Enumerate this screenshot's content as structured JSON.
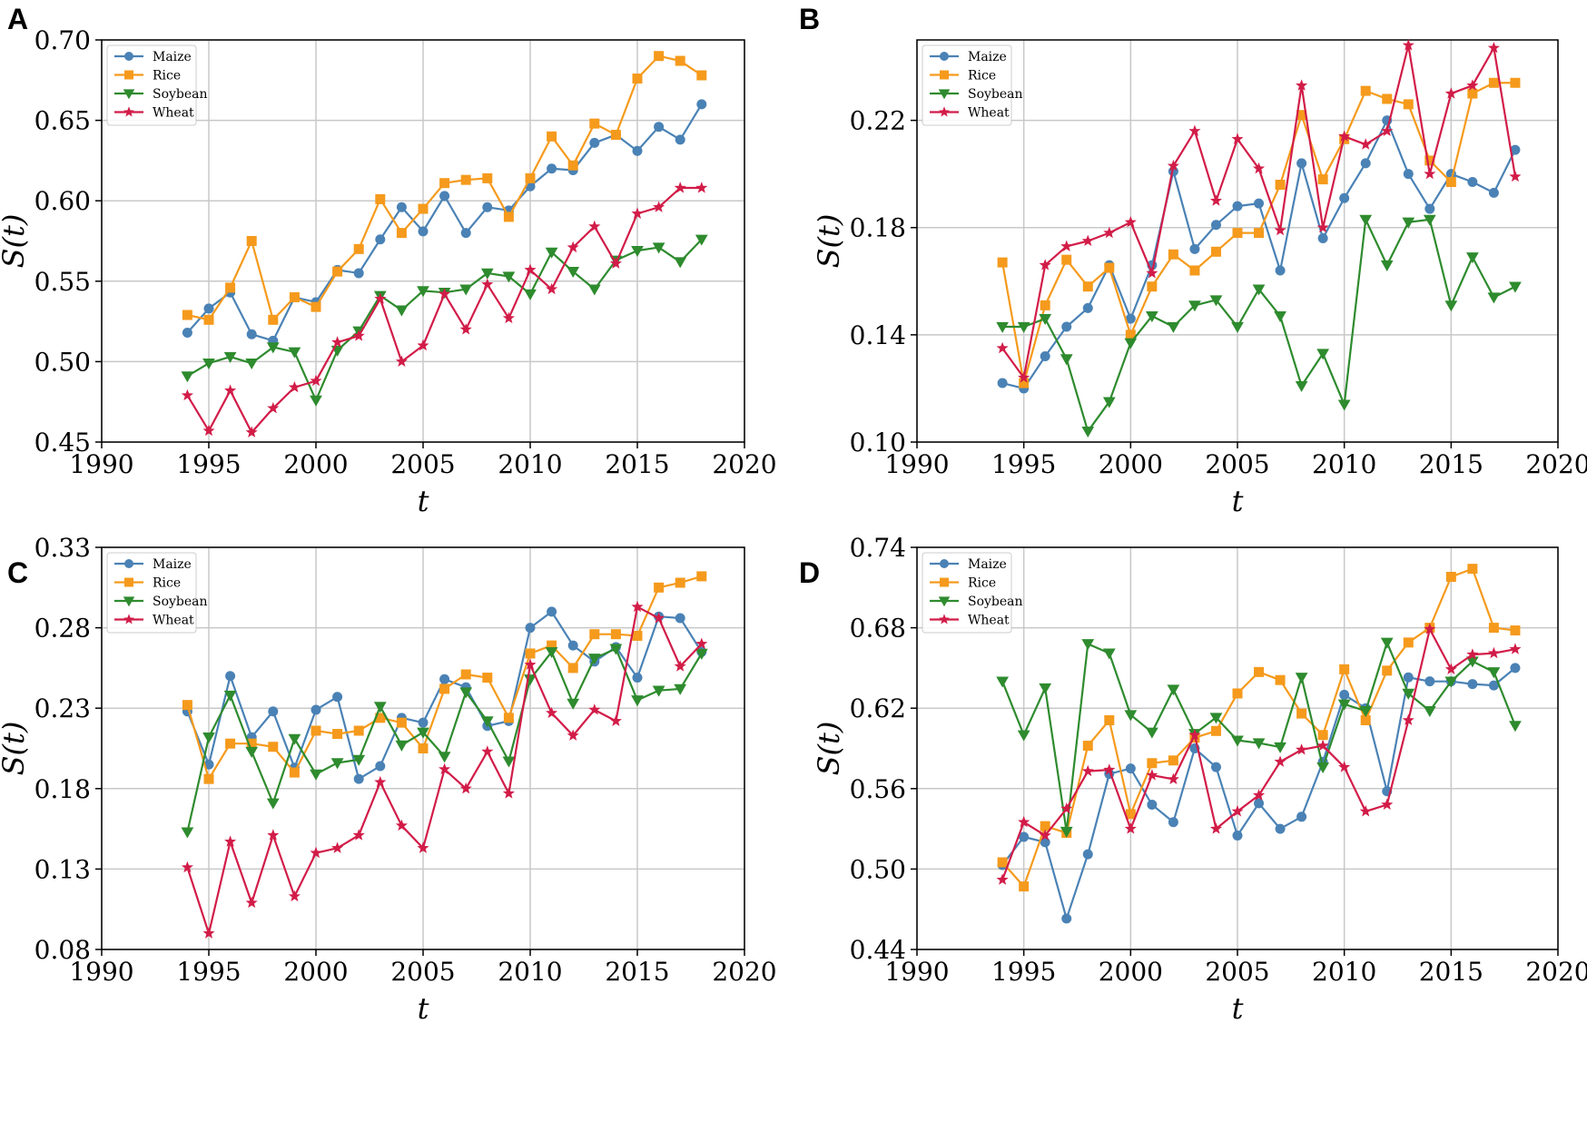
{
  "figure": {
    "ylabel": "S(t)",
    "xlabel": "t"
  },
  "colors": {
    "Maize": "#4a82b5",
    "Rice": "#f59a1c",
    "Soybean": "#2e8b2e",
    "Wheat": "#d21c48"
  },
  "markers": {
    "Maize": "circle",
    "Rice": "square",
    "Soybean": "triangle-down",
    "Wheat": "star"
  },
  "chart_data": [
    {
      "type": "line",
      "label": "A",
      "xlabel": "t",
      "ylabel": "S(t)",
      "xlim": [
        1990,
        2020
      ],
      "ylim": [
        0.45,
        0.7
      ],
      "xticks": [
        1990,
        1995,
        2000,
        2005,
        2010,
        2015,
        2020
      ],
      "yticks": [
        0.45,
        0.5,
        0.55,
        0.6,
        0.65,
        0.7
      ],
      "ytick_labels": [
        "0.45",
        "0.50",
        "0.55",
        "0.60",
        "0.65",
        "0.70"
      ],
      "xtick_labels": [
        "1990",
        "1995",
        "2000",
        "2005",
        "2010",
        "2015",
        "2020"
      ],
      "legend": [
        "Maize",
        "Rice",
        "Soybean",
        "Wheat"
      ],
      "legend_position": "top-left",
      "x": [
        1994,
        1995,
        1996,
        1997,
        1998,
        1999,
        2000,
        2001,
        2002,
        2003,
        2004,
        2005,
        2006,
        2007,
        2008,
        2009,
        2010,
        2011,
        2012,
        2013,
        2014,
        2015,
        2016,
        2017,
        2018
      ],
      "series": [
        {
          "name": "Maize",
          "values": [
            0.518,
            0.533,
            0.543,
            0.517,
            0.513,
            0.54,
            0.537,
            0.557,
            0.555,
            0.576,
            0.596,
            0.581,
            0.603,
            0.58,
            0.596,
            0.594,
            0.609,
            0.62,
            0.619,
            0.636,
            0.641,
            0.631,
            0.646,
            0.638,
            0.66
          ]
        },
        {
          "name": "Rice",
          "values": [
            0.529,
            0.526,
            0.546,
            0.575,
            0.526,
            0.54,
            0.534,
            0.556,
            0.57,
            0.601,
            0.58,
            0.595,
            0.611,
            0.613,
            0.614,
            0.59,
            0.614,
            0.64,
            0.622,
            0.648,
            0.641,
            0.676,
            0.69,
            0.687,
            0.678
          ]
        },
        {
          "name": "Soybean",
          "values": [
            0.491,
            0.499,
            0.503,
            0.499,
            0.509,
            0.506,
            0.476,
            0.507,
            0.519,
            0.541,
            0.532,
            0.544,
            0.543,
            0.545,
            0.555,
            0.553,
            0.542,
            0.568,
            0.556,
            0.545,
            0.563,
            0.569,
            0.571,
            0.562,
            0.576
          ]
        },
        {
          "name": "Wheat",
          "values": [
            0.479,
            0.457,
            0.482,
            0.456,
            0.471,
            0.484,
            0.488,
            0.512,
            0.516,
            0.539,
            0.5,
            0.51,
            0.542,
            0.52,
            0.548,
            0.527,
            0.557,
            0.545,
            0.571,
            0.584,
            0.561,
            0.592,
            0.596,
            0.608,
            0.608
          ]
        }
      ]
    },
    {
      "type": "line",
      "label": "B",
      "xlabel": "t",
      "ylabel": "S(t)",
      "xlim": [
        1990,
        2020
      ],
      "ylim": [
        0.1,
        0.25
      ],
      "xticks": [
        1990,
        1995,
        2000,
        2005,
        2010,
        2015,
        2020
      ],
      "yticks": [
        0.1,
        0.14,
        0.18,
        0.22
      ],
      "ytick_labels": [
        "0.10",
        "0.14",
        "0.18",
        "0.22"
      ],
      "xtick_labels": [
        "1990",
        "1995",
        "2000",
        "2005",
        "2010",
        "2015",
        "2020"
      ],
      "legend": [
        "Maize",
        "Rice",
        "Soybean",
        "Wheat"
      ],
      "legend_position": "top-left",
      "x": [
        1994,
        1995,
        1996,
        1997,
        1998,
        1999,
        2000,
        2001,
        2002,
        2003,
        2004,
        2005,
        2006,
        2007,
        2008,
        2009,
        2010,
        2011,
        2012,
        2013,
        2014,
        2015,
        2016,
        2017,
        2018
      ],
      "series": [
        {
          "name": "Maize",
          "values": [
            0.122,
            0.12,
            0.132,
            0.143,
            0.15,
            0.166,
            0.146,
            0.166,
            0.201,
            0.172,
            0.181,
            0.188,
            0.189,
            0.164,
            0.204,
            0.176,
            0.191,
            0.204,
            0.22,
            0.2,
            0.187,
            0.2,
            0.197,
            0.193,
            0.209
          ]
        },
        {
          "name": "Rice",
          "values": [
            0.167,
            0.122,
            0.151,
            0.168,
            0.158,
            0.165,
            0.14,
            0.158,
            0.17,
            0.164,
            0.171,
            0.178,
            0.178,
            0.196,
            0.222,
            0.198,
            0.213,
            0.231,
            0.228,
            0.226,
            0.205,
            0.197,
            0.23,
            0.234,
            0.234
          ]
        },
        {
          "name": "Soybean",
          "values": [
            0.143,
            0.143,
            0.146,
            0.131,
            0.104,
            0.115,
            0.137,
            0.147,
            0.143,
            0.151,
            0.153,
            0.143,
            0.157,
            0.147,
            0.121,
            0.133,
            0.114,
            0.183,
            0.166,
            0.182,
            0.183,
            0.151,
            0.169,
            0.154,
            0.158
          ]
        },
        {
          "name": "Wheat",
          "values": [
            0.135,
            0.124,
            0.166,
            0.173,
            0.175,
            0.178,
            0.182,
            0.163,
            0.203,
            0.216,
            0.19,
            0.213,
            0.202,
            0.179,
            0.233,
            0.18,
            0.214,
            0.211,
            0.216,
            0.248,
            0.2,
            0.23,
            0.233,
            0.247,
            0.199
          ]
        }
      ]
    },
    {
      "type": "line",
      "label": "C",
      "xlabel": "t",
      "ylabel": "S(t)",
      "xlim": [
        1990,
        2020
      ],
      "ylim": [
        0.08,
        0.33
      ],
      "xticks": [
        1990,
        1995,
        2000,
        2005,
        2010,
        2015,
        2020
      ],
      "yticks": [
        0.08,
        0.13,
        0.18,
        0.23,
        0.28,
        0.33
      ],
      "ytick_labels": [
        "0.08",
        "0.13",
        "0.18",
        "0.23",
        "0.28",
        "0.33"
      ],
      "xtick_labels": [
        "1990",
        "1995",
        "2000",
        "2005",
        "2010",
        "2015",
        "2020"
      ],
      "legend": [
        "Maize",
        "Rice",
        "Soybean",
        "Wheat"
      ],
      "legend_position": "top-left",
      "x": [
        1994,
        1995,
        1996,
        1997,
        1998,
        1999,
        2000,
        2001,
        2002,
        2003,
        2004,
        2005,
        2006,
        2007,
        2008,
        2009,
        2010,
        2011,
        2012,
        2013,
        2014,
        2015,
        2016,
        2017,
        2018
      ],
      "series": [
        {
          "name": "Maize",
          "values": [
            0.228,
            0.195,
            0.25,
            0.212,
            0.228,
            0.193,
            0.229,
            0.237,
            0.186,
            0.194,
            0.224,
            0.221,
            0.248,
            0.243,
            0.219,
            0.222,
            0.28,
            0.29,
            0.269,
            0.259,
            0.268,
            0.249,
            0.287,
            0.286,
            0.265
          ]
        },
        {
          "name": "Rice",
          "values": [
            0.232,
            0.186,
            0.208,
            0.208,
            0.206,
            0.19,
            0.216,
            0.214,
            0.216,
            0.224,
            0.221,
            0.205,
            0.242,
            0.251,
            0.249,
            0.224,
            0.264,
            0.269,
            0.255,
            0.276,
            0.276,
            0.275,
            0.305,
            0.308,
            0.312
          ]
        },
        {
          "name": "Soybean",
          "values": [
            0.153,
            0.212,
            0.238,
            0.203,
            0.171,
            0.211,
            0.189,
            0.196,
            0.198,
            0.231,
            0.207,
            0.215,
            0.2,
            0.24,
            0.222,
            0.197,
            0.248,
            0.265,
            0.233,
            0.261,
            0.267,
            0.235,
            0.241,
            0.242,
            0.264
          ]
        },
        {
          "name": "Wheat",
          "values": [
            0.131,
            0.09,
            0.147,
            0.109,
            0.151,
            0.113,
            0.14,
            0.143,
            0.151,
            0.184,
            0.157,
            0.143,
            0.192,
            0.18,
            0.203,
            0.177,
            0.257,
            0.227,
            0.213,
            0.229,
            0.222,
            0.293,
            0.286,
            0.256,
            0.27
          ]
        }
      ]
    },
    {
      "type": "line",
      "label": "D",
      "xlabel": "t",
      "ylabel": "S(t)",
      "xlim": [
        1990,
        2020
      ],
      "ylim": [
        0.44,
        0.74
      ],
      "xticks": [
        1990,
        1995,
        2000,
        2005,
        2010,
        2015,
        2020
      ],
      "yticks": [
        0.44,
        0.5,
        0.56,
        0.62,
        0.68,
        0.74
      ],
      "ytick_labels": [
        "0.44",
        "0.50",
        "0.56",
        "0.62",
        "0.68",
        "0.74"
      ],
      "xtick_labels": [
        "1990",
        "1995",
        "2000",
        "2005",
        "2010",
        "2015",
        "2020"
      ],
      "legend": [
        "Maize",
        "Rice",
        "Soybean",
        "Wheat"
      ],
      "legend_position": "top-left",
      "x": [
        1994,
        1995,
        1996,
        1997,
        1998,
        1999,
        2000,
        2001,
        2002,
        2003,
        2004,
        2005,
        2006,
        2007,
        2008,
        2009,
        2010,
        2011,
        2012,
        2013,
        2014,
        2015,
        2016,
        2017,
        2018
      ],
      "series": [
        {
          "name": "Maize",
          "values": [
            0.503,
            0.524,
            0.52,
            0.463,
            0.511,
            0.571,
            0.575,
            0.548,
            0.535,
            0.59,
            0.576,
            0.525,
            0.549,
            0.53,
            0.539,
            0.58,
            0.63,
            0.62,
            0.558,
            0.643,
            0.64,
            0.64,
            0.638,
            0.637,
            0.65
          ]
        },
        {
          "name": "Rice",
          "values": [
            0.505,
            0.487,
            0.532,
            0.527,
            0.592,
            0.611,
            0.541,
            0.579,
            0.581,
            0.598,
            0.603,
            0.631,
            0.647,
            0.641,
            0.616,
            0.6,
            0.649,
            0.611,
            0.648,
            0.669,
            0.68,
            0.718,
            0.724,
            0.68,
            0.678
          ]
        },
        {
          "name": "Soybean",
          "values": [
            0.64,
            0.6,
            0.635,
            0.528,
            0.668,
            0.661,
            0.615,
            0.602,
            0.634,
            0.601,
            0.613,
            0.596,
            0.594,
            0.591,
            0.643,
            0.576,
            0.623,
            0.618,
            0.669,
            0.631,
            0.618,
            0.64,
            0.655,
            0.647,
            0.607
          ]
        },
        {
          "name": "Wheat",
          "values": [
            0.492,
            0.535,
            0.525,
            0.545,
            0.573,
            0.574,
            0.53,
            0.57,
            0.567,
            0.6,
            0.53,
            0.543,
            0.555,
            0.58,
            0.589,
            0.592,
            0.576,
            0.543,
            0.548,
            0.611,
            0.679,
            0.649,
            0.66,
            0.661,
            0.664
          ]
        }
      ]
    }
  ]
}
